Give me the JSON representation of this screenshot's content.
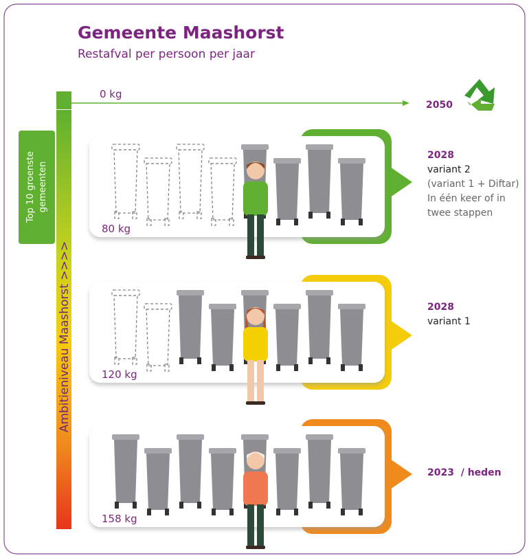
{
  "header": {
    "title": "Gemeente Maashorst",
    "subtitle": "Restafval per persoon per jaar"
  },
  "side_labels": {
    "top10": [
      "Top 10 groenste",
      "gemeenten"
    ],
    "ambition": "Ambitieniveau Maashorst >>>>"
  },
  "goal": {
    "amount": "0 kg",
    "year": "2050"
  },
  "levels": [
    {
      "amount": "80 kg",
      "year": "2028",
      "lines": [
        "variant 2",
        "(variant 1 + Diftar)",
        "In één keer of in",
        "twee stappen"
      ]
    },
    {
      "amount": "120 kg",
      "year": "2028",
      "lines": [
        "variant 1"
      ]
    },
    {
      "amount": "158 kg",
      "year": "2023  / heden"
    }
  ]
}
